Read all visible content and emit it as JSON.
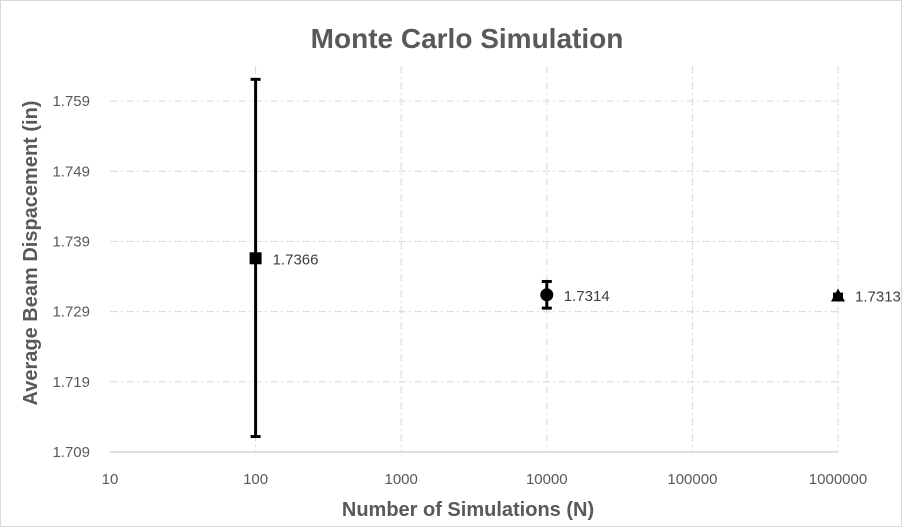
{
  "chart_data": {
    "type": "scatter",
    "title": "Monte Carlo Simulation",
    "xlabel": "Number of Simulations (N)",
    "ylabel": "Average Beam Dispacement (in)",
    "x_scale": "log",
    "xlim": [
      10,
      1000000
    ],
    "ylim": [
      1.709,
      1.764
    ],
    "x_ticks": [
      "10",
      "100",
      "1000",
      "10000",
      "100000",
      "1000000"
    ],
    "y_ticks": [
      "1.709",
      "1.719",
      "1.729",
      "1.739",
      "1.749",
      "1.759"
    ],
    "grid": true,
    "legend": "none",
    "color": "#000000",
    "points": [
      {
        "x": 100,
        "y": 1.7366,
        "label": "1.7366",
        "marker": "square",
        "error_low": 1.7112,
        "error_high": 1.7621
      },
      {
        "x": 10000,
        "y": 1.7314,
        "label": "1.7314",
        "marker": "circle",
        "error_low": 1.7295,
        "error_high": 1.7333
      },
      {
        "x": 1000000,
        "y": 1.7313,
        "label": "1.7313",
        "marker": "triangle",
        "error_low": 1.7311,
        "error_high": 1.7315
      }
    ]
  }
}
